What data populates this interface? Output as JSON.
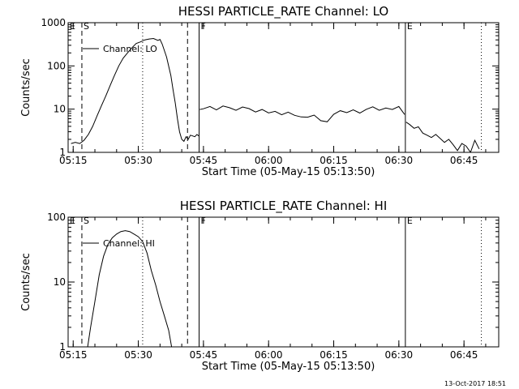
{
  "footer_timestamp": "13-Oct-2017 18:51",
  "chart_data": [
    {
      "type": "line",
      "title": "HESSI PARTICLE_RATE Channel: LO",
      "xlabel": "Start Time (05-May-15 05:13:50)",
      "ylabel": "Counts/sec",
      "y_scale": "log",
      "ylim": [
        1,
        1000
      ],
      "xlim": [
        "05:13:50",
        "06:53:00"
      ],
      "y_ticks": [
        "1",
        "10",
        "100",
        "1000"
      ],
      "x_ticks": [
        "05:15",
        "05:30",
        "05:45",
        "06:00",
        "06:15",
        "06:30",
        "06:45"
      ],
      "legend": {
        "position": "top-left",
        "entries": [
          "Channel: LO"
        ]
      },
      "markers": [
        {
          "label": "E",
          "time": "05:13:50",
          "style": "solid"
        },
        {
          "label": "S",
          "time": "05:17:00",
          "style": "dashed"
        },
        {
          "label": "",
          "time": "05:31:00",
          "style": "dotted"
        },
        {
          "label": "",
          "time": "05:41:20",
          "style": "dashed"
        },
        {
          "label": "F",
          "time": "05:44:00",
          "style": "solid"
        },
        {
          "label": "E",
          "time": "06:31:30",
          "style": "solid"
        },
        {
          "label": "",
          "time": "06:49:00",
          "style": "dotted"
        }
      ],
      "series": [
        {
          "color": "#000000",
          "segments": [
            {
              "t": [
                "05:14:30",
                "05:15:30",
                "05:16:30",
                "05:17:30",
                "05:18:30",
                "05:19:30",
                "05:20:30",
                "05:21:30",
                "05:22:30",
                "05:23:30",
                "05:24:30",
                "05:25:30",
                "05:26:30",
                "05:27:30",
                "05:28:30",
                "05:29:30",
                "05:30:30",
                "05:31:30",
                "05:32:30",
                "05:33:30",
                "05:34:30",
                "05:35:00",
                "05:35:30",
                "05:36:30",
                "05:37:30",
                "05:38:00",
                "05:38:30",
                "05:39:00",
                "05:39:30",
                "05:40:00",
                "05:40:30",
                "05:41:00",
                "05:41:30",
                "05:42:00",
                "05:42:30",
                "05:43:00",
                "05:43:30",
                "05:43:55"
              ],
              "y": [
                1.6,
                1.7,
                1.6,
                1.9,
                2.6,
                4,
                7,
                12,
                20,
                35,
                60,
                100,
                150,
                200,
                260,
                330,
                360,
                400,
                420,
                430,
                390,
                410,
                320,
                160,
                60,
                28,
                14,
                6,
                3,
                2,
                1.8,
                2.3,
                2.0,
                2.5,
                2.4,
                2.3,
                2.6,
                2.4
              ]
            },
            {
              "t": [
                "05:44:10",
                "05:45:00",
                "05:46:30",
                "05:48:00",
                "05:49:30",
                "05:51:00",
                "05:52:30",
                "05:54:00",
                "05:55:30",
                "05:57:00",
                "05:58:30",
                "06:00:00",
                "06:01:30",
                "06:03:00",
                "06:04:30",
                "06:06:00",
                "06:07:30",
                "06:09:00",
                "06:10:30",
                "06:12:00",
                "06:13:30",
                "06:15:00",
                "06:16:30",
                "06:18:00",
                "06:19:30",
                "06:21:00",
                "06:22:30",
                "06:24:00",
                "06:25:30",
                "06:27:00",
                "06:28:30",
                "06:30:00",
                "06:31:20"
              ],
              "y": [
                9.8,
                10.2,
                11.5,
                9.6,
                11.8,
                10.8,
                9.4,
                11.2,
                10.3,
                8.6,
                9.8,
                8.2,
                8.9,
                7.4,
                8.5,
                7.2,
                6.6,
                6.5,
                7.3,
                5.4,
                5.1,
                7.6,
                9.2,
                8.3,
                9.6,
                8.1,
                9.9,
                11.3,
                9.4,
                10.6,
                9.8,
                11.5,
                7.5
              ]
            },
            {
              "t": [
                "06:31:40",
                "06:32:30",
                "06:33:30",
                "06:34:30",
                "06:35:30",
                "06:36:30",
                "06:37:30",
                "06:38:30",
                "06:39:30",
                "06:40:30",
                "06:41:30",
                "06:42:30",
                "06:43:30",
                "06:44:30",
                "06:45:30",
                "06:46:30",
                "06:47:30",
                "06:48:30"
              ],
              "y": [
                5.0,
                4.4,
                3.6,
                3.9,
                2.8,
                2.5,
                2.2,
                2.6,
                2.1,
                1.7,
                2.0,
                1.5,
                1.1,
                1.6,
                1.4,
                1.0,
                1.9,
                1.2
              ]
            }
          ]
        }
      ]
    },
    {
      "type": "line",
      "title": "HESSI PARTICLE_RATE Channel: HI",
      "xlabel": "Start Time (05-May-15 05:13:50)",
      "ylabel": "Counts/sec",
      "y_scale": "log",
      "ylim": [
        1,
        100
      ],
      "xlim": [
        "05:13:50",
        "06:53:00"
      ],
      "y_ticks": [
        "1",
        "10",
        "100"
      ],
      "x_ticks": [
        "05:15",
        "05:30",
        "05:45",
        "06:00",
        "06:15",
        "06:30",
        "06:45"
      ],
      "legend": {
        "position": "top-left",
        "entries": [
          "Channel: HI"
        ]
      },
      "markers": [
        {
          "label": "E",
          "time": "05:13:50",
          "style": "solid"
        },
        {
          "label": "S",
          "time": "05:17:00",
          "style": "dashed"
        },
        {
          "label": "",
          "time": "05:31:00",
          "style": "dotted"
        },
        {
          "label": "",
          "time": "05:41:20",
          "style": "dashed"
        },
        {
          "label": "F",
          "time": "05:44:00",
          "style": "solid"
        },
        {
          "label": "E",
          "time": "06:31:30",
          "style": "solid"
        },
        {
          "label": "",
          "time": "06:49:00",
          "style": "dotted"
        }
      ],
      "series": [
        {
          "color": "#000000",
          "segments": [
            {
              "t": [
                "05:18:20",
                "05:19:00",
                "05:20:00",
                "05:21:00",
                "05:22:00",
                "05:23:00",
                "05:24:00",
                "05:25:00",
                "05:26:00",
                "05:27:00",
                "05:28:00",
                "05:29:00",
                "05:30:00",
                "05:31:00",
                "05:32:00",
                "05:33:00",
                "05:34:00",
                "05:35:00",
                "05:36:00",
                "05:37:00",
                "05:37:40"
              ],
              "y": [
                1.0,
                2.0,
                5.0,
                13,
                25,
                38,
                48,
                55,
                60,
                62,
                60,
                55,
                50,
                42,
                28,
                15,
                9,
                5,
                3,
                1.8,
                1.0
              ]
            }
          ]
        }
      ]
    }
  ]
}
